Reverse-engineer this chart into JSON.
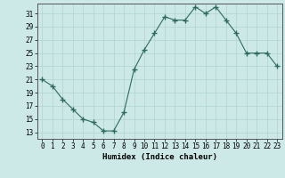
{
  "x": [
    0,
    1,
    2,
    3,
    4,
    5,
    6,
    7,
    8,
    9,
    10,
    11,
    12,
    13,
    14,
    15,
    16,
    17,
    18,
    19,
    20,
    21,
    22,
    23
  ],
  "y": [
    21,
    20,
    18,
    16.5,
    15,
    14.5,
    13.2,
    13.2,
    16,
    22.5,
    25.5,
    28,
    30.5,
    30,
    30,
    32,
    31,
    32,
    30,
    28,
    25,
    25,
    25,
    23
  ],
  "line_color": "#2e6b5e",
  "marker": "+",
  "marker_size": 4,
  "bg_color": "#cce9e7",
  "grid_color": "#b0d4d0",
  "xlabel": "Humidex (Indice chaleur)",
  "xlim": [
    -0.5,
    23.5
  ],
  "ylim": [
    12,
    32.5
  ],
  "yticks": [
    13,
    15,
    17,
    19,
    21,
    23,
    25,
    27,
    29,
    31
  ],
  "xtick_labels": [
    "0",
    "1",
    "2",
    "3",
    "4",
    "5",
    "6",
    "7",
    "8",
    "9",
    "10",
    "11",
    "12",
    "13",
    "14",
    "15",
    "16",
    "17",
    "18",
    "19",
    "20",
    "21",
    "22",
    "23"
  ],
  "xlabel_fontsize": 6.5,
  "tick_fontsize": 5.5
}
